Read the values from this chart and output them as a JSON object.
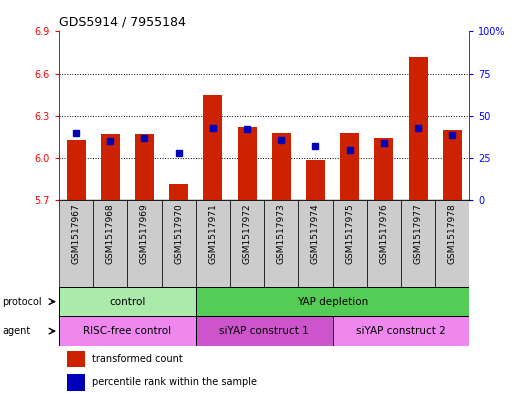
{
  "title": "GDS5914 / 7955184",
  "samples": [
    "GSM1517967",
    "GSM1517968",
    "GSM1517969",
    "GSM1517970",
    "GSM1517971",
    "GSM1517972",
    "GSM1517973",
    "GSM1517974",
    "GSM1517975",
    "GSM1517976",
    "GSM1517977",
    "GSM1517978"
  ],
  "transformed_counts": [
    6.13,
    6.17,
    6.17,
    5.82,
    6.45,
    6.22,
    6.18,
    5.99,
    6.18,
    6.14,
    6.72,
    6.2
  ],
  "percentile_ranks": [
    40,
    35,
    37,
    28,
    43,
    42,
    36,
    32,
    30,
    34,
    43,
    39
  ],
  "ymin": 5.7,
  "ymax": 6.9,
  "y_ticks": [
    5.7,
    6.0,
    6.3,
    6.6,
    6.9
  ],
  "y2_ticks": [
    0,
    25,
    50,
    75,
    100
  ],
  "bar_color": "#cc2200",
  "dot_color": "#0000bb",
  "bar_width": 0.55,
  "sample_bg_color": "#cccccc",
  "protocol_groups": [
    {
      "label": "control",
      "start": 0,
      "end": 4,
      "color": "#aaeaaa"
    },
    {
      "label": "YAP depletion",
      "start": 4,
      "end": 12,
      "color": "#55cc55"
    }
  ],
  "agent_groups": [
    {
      "label": "RISC-free control",
      "start": 0,
      "end": 4,
      "color": "#ee88ee"
    },
    {
      "label": "siYAP construct 1",
      "start": 4,
      "end": 8,
      "color": "#cc55cc"
    },
    {
      "label": "siYAP construct 2",
      "start": 8,
      "end": 12,
      "color": "#ee88ee"
    }
  ],
  "legend_items": [
    {
      "label": "transformed count",
      "color": "#cc2200"
    },
    {
      "label": "percentile rank within the sample",
      "color": "#0000bb"
    }
  ]
}
